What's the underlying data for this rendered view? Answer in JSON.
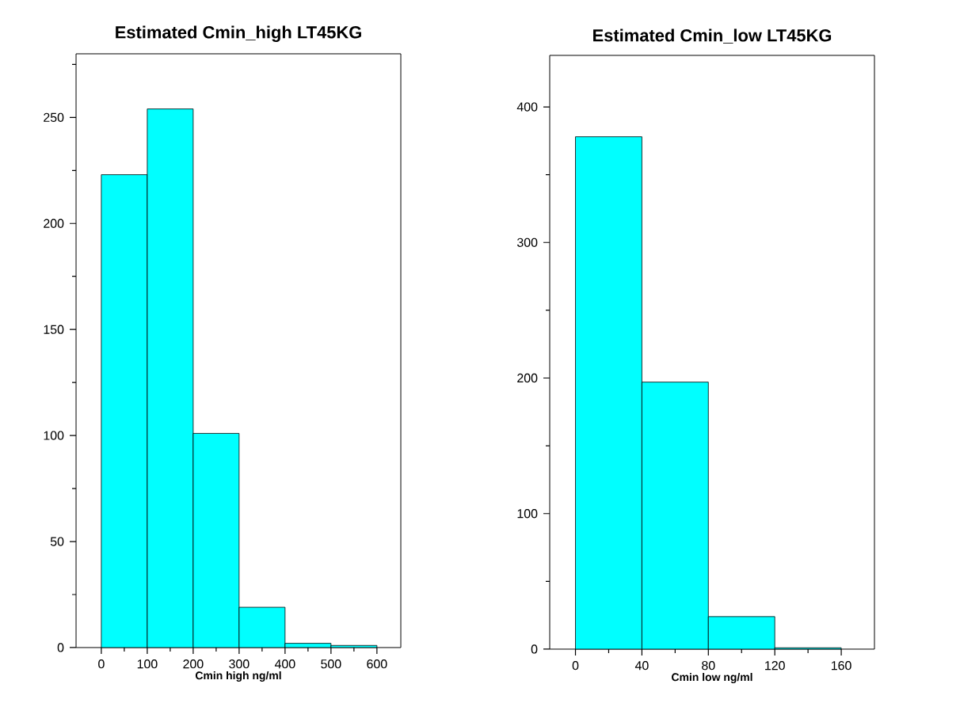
{
  "chart_data": [
    {
      "type": "histogram",
      "title": "Estimated Cmin_high LT45KG",
      "xlabel": "Cmin  high ng/ml",
      "bins": [
        0,
        100,
        200,
        300,
        400,
        500,
        600
      ],
      "values": [
        223,
        254,
        101,
        19,
        2,
        1
      ],
      "color": "#00ffff",
      "xlim": [
        -55,
        652
      ],
      "ylim": [
        0,
        280
      ],
      "xticks": [
        0,
        100,
        200,
        300,
        400,
        500,
        600,
        {
          "value": 50,
          "label": null
        },
        {
          "value": 150,
          "label": null
        },
        {
          "value": 250,
          "label": null
        },
        {
          "value": 350,
          "label": null
        },
        {
          "value": 450,
          "label": null
        },
        {
          "value": 550,
          "label": null
        }
      ],
      "yticks": [
        0,
        50,
        100,
        150,
        200,
        250,
        {
          "value": 25,
          "label": null
        },
        {
          "value": 75,
          "label": null
        },
        {
          "value": 125,
          "label": null
        },
        {
          "value": 175,
          "label": null
        },
        {
          "value": 225,
          "label": null
        },
        {
          "value": 275,
          "label": null
        }
      ],
      "grid": false
    },
    {
      "type": "histogram",
      "title": "Estimated Cmin_low LT45KG",
      "xlabel": "Cmin  low ng/ml",
      "bins": [
        0,
        40,
        80,
        120,
        160
      ],
      "values": [
        378,
        197,
        24,
        1
      ],
      "color": "#00ffff",
      "xlim": [
        -15.5,
        180
      ],
      "ylim": [
        0,
        438
      ],
      "xticks": [
        0,
        40,
        80,
        120,
        160,
        {
          "value": 20,
          "label": null
        },
        {
          "value": 60,
          "label": null
        },
        {
          "value": 100,
          "label": null
        },
        {
          "value": 140,
          "label": null
        }
      ],
      "yticks": [
        0,
        100,
        200,
        300,
        400,
        {
          "value": 50,
          "label": null
        },
        {
          "value": 150,
          "label": null
        },
        {
          "value": 250,
          "label": null
        },
        {
          "value": 350,
          "label": null
        }
      ],
      "grid": false
    }
  ]
}
